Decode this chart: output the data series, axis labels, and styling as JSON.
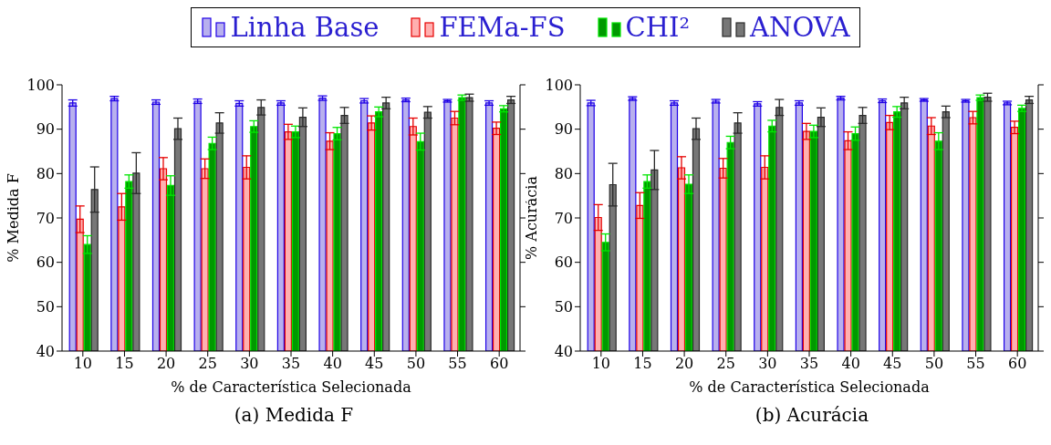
{
  "chart_data": [
    {
      "type": "bar",
      "xlabel": "% de Característica Selecionada",
      "ylabel": "% Medida F",
      "annotations": [
        "(a) Medida F"
      ],
      "categories": [
        "10",
        "15",
        "20",
        "25",
        "30",
        "35",
        "40",
        "45",
        "50",
        "55",
        "60"
      ],
      "ylim": [
        40,
        100
      ],
      "yticks": [
        40,
        50,
        60,
        70,
        80,
        90,
        100
      ],
      "grid": false,
      "legend": "top",
      "series": [
        {
          "name": "Linha Base",
          "color": "#b8b0ee",
          "values": [
            95.9,
            96.9,
            96.1,
            96.3,
            95.8,
            95.9,
            97.0,
            96.4,
            96.6,
            96.4,
            95.9
          ],
          "errors": [
            0.7,
            0.5,
            0.5,
            0.5,
            0.6,
            0.5,
            0.5,
            0.5,
            0.4,
            0.3,
            0.5
          ]
        },
        {
          "name": "FEMa-FS",
          "color": "#ffb0b0",
          "values": [
            69.7,
            72.5,
            81.1,
            81.1,
            81.4,
            89.4,
            87.3,
            91.4,
            90.6,
            92.5,
            90.2
          ],
          "errors": [
            3.0,
            3.0,
            2.5,
            2.2,
            2.6,
            1.7,
            1.9,
            1.6,
            1.9,
            1.5,
            1.4
          ]
        },
        {
          "name": "CHI²",
          "color": "#009900",
          "values": [
            64.0,
            78.2,
            77.3,
            86.8,
            90.6,
            89.4,
            89.0,
            93.9,
            87.2,
            97.1,
            94.6
          ],
          "errors": [
            2.0,
            1.5,
            2.2,
            1.4,
            1.3,
            1.3,
            1.4,
            1.1,
            1.9,
            0.6,
            0.7
          ]
        },
        {
          "name": "ANOVA",
          "color": "#777777",
          "values": [
            76.4,
            80.1,
            90.1,
            91.4,
            94.9,
            92.7,
            93.1,
            95.9,
            93.8,
            97.1,
            96.6
          ],
          "errors": [
            5.1,
            4.6,
            2.4,
            2.3,
            1.7,
            2.1,
            1.8,
            1.3,
            1.3,
            0.8,
            0.8
          ]
        }
      ]
    },
    {
      "type": "bar",
      "xlabel": "% de Característica Selecionada",
      "ylabel": "% Acurácia",
      "annotations": [
        "(b) Acurácia"
      ],
      "categories": [
        "10",
        "15",
        "20",
        "25",
        "30",
        "35",
        "40",
        "45",
        "50",
        "55",
        "60"
      ],
      "ylim": [
        40,
        100
      ],
      "yticks": [
        40,
        50,
        60,
        70,
        80,
        90,
        100
      ],
      "grid": false,
      "series": [
        {
          "color": "#b8b0ee",
          "values": [
            95.9,
            96.9,
            95.9,
            96.3,
            95.7,
            95.9,
            97.0,
            96.4,
            96.6,
            96.4,
            95.9
          ],
          "errors": [
            0.6,
            0.4,
            0.5,
            0.4,
            0.5,
            0.5,
            0.4,
            0.4,
            0.3,
            0.3,
            0.4
          ]
        },
        {
          "color": "#ffb0b0",
          "values": [
            70.1,
            72.8,
            81.3,
            81.2,
            81.4,
            89.5,
            87.4,
            91.5,
            90.7,
            92.6,
            90.4
          ],
          "errors": [
            2.9,
            2.9,
            2.5,
            2.2,
            2.6,
            1.8,
            2.0,
            1.6,
            1.9,
            1.4,
            1.4
          ]
        },
        {
          "color": "#009900",
          "values": [
            64.5,
            78.2,
            77.6,
            87.0,
            90.7,
            89.5,
            89.0,
            93.9,
            87.3,
            97.1,
            94.7
          ],
          "errors": [
            1.9,
            1.5,
            2.1,
            1.4,
            1.3,
            1.4,
            1.5,
            1.2,
            1.9,
            0.6,
            0.7
          ]
        },
        {
          "color": "#777777",
          "values": [
            77.5,
            80.8,
            90.1,
            91.4,
            94.9,
            92.7,
            93.1,
            95.9,
            93.9,
            97.2,
            96.6
          ],
          "errors": [
            4.8,
            4.4,
            2.4,
            2.3,
            1.8,
            2.1,
            1.8,
            1.3,
            1.3,
            0.9,
            0.8
          ]
        }
      ]
    }
  ]
}
